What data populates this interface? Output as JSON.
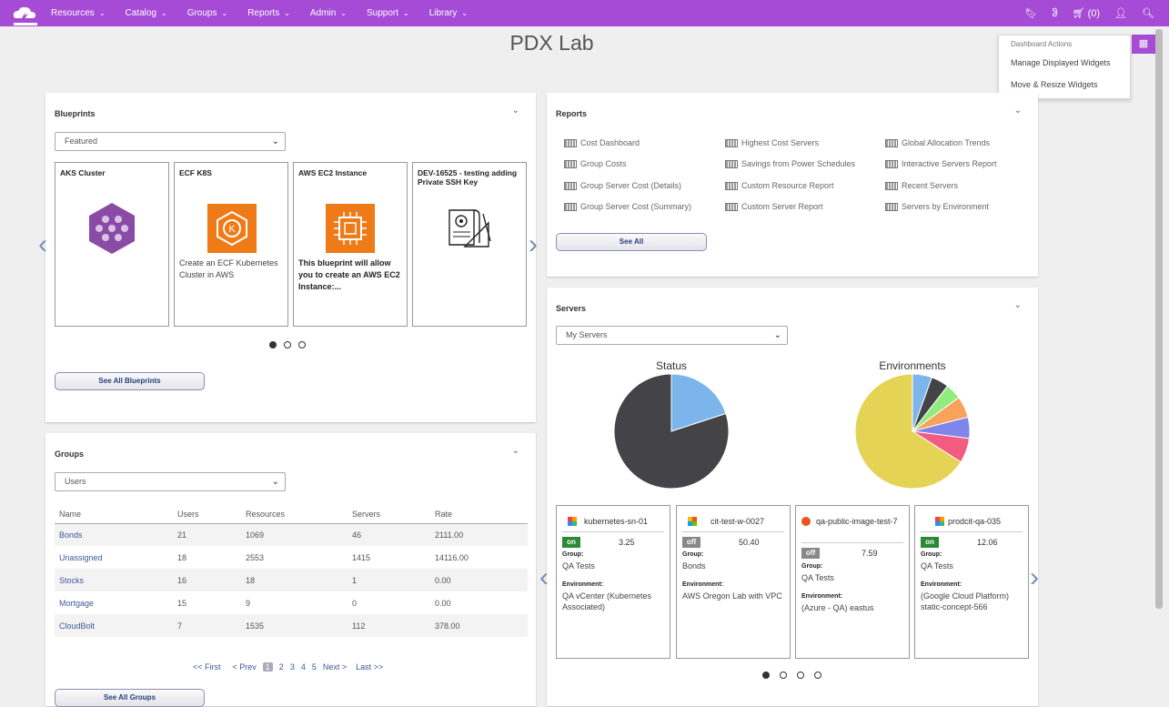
{
  "nav": {
    "items": [
      "Resources",
      "Catalog",
      "Groups",
      "Reports",
      "Admin",
      "Support",
      "Library"
    ],
    "cart_label": "(0)"
  },
  "page": {
    "title": "PDX Lab"
  },
  "dashboard_actions": {
    "heading": "Dashboard Actions",
    "items": [
      "Manage Displayed Widgets",
      "Move & Resize Widgets"
    ]
  },
  "blueprints": {
    "title": "Blueprints",
    "filter": "Featured",
    "cards": [
      {
        "name": "AKS Cluster",
        "desc": ""
      },
      {
        "name": "ECF K8S",
        "desc": "Create an ECF Kubernetes Cluster in AWS"
      },
      {
        "name": "AWS EC2 Instance",
        "desc": "This blueprint will allow you to create an AWS EC2 Instance:..."
      },
      {
        "name": "DEV-16525 - testing adding Private SSH Key",
        "desc": ""
      }
    ],
    "see_all": "See All Blueprints"
  },
  "reports": {
    "title": "Reports",
    "links": [
      [
        "Cost Dashboard",
        "Group Costs",
        "Group Server Cost (Details)",
        "Group Server Cost (Summary)"
      ],
      [
        "Highest Cost Servers",
        "Savings from Power Schedules",
        "Custom Resource Report",
        "Custom Server Report"
      ],
      [
        "Global Allocation Trends",
        "Interactive Servers Report",
        "Recent Servers",
        "Servers by Environment"
      ]
    ],
    "see_all": "See All"
  },
  "groups": {
    "title": "Groups",
    "filter": "Users",
    "columns": [
      "Name",
      "Users",
      "Resources",
      "Servers",
      "Rate"
    ],
    "rows": [
      [
        "Bonds",
        "21",
        "1069",
        "46",
        "2111.00"
      ],
      [
        "Unassigned",
        "18",
        "2553",
        "1415",
        "14116.00"
      ],
      [
        "Stocks",
        "16",
        "18",
        "1",
        "0.00"
      ],
      [
        "Mortgage",
        "15",
        "9",
        "0",
        "0.00"
      ],
      [
        "CloudBolt",
        "7",
        "1535",
        "112",
        "378.00"
      ]
    ],
    "pager": {
      "first": "<< First",
      "prev": "< Prev",
      "pages": [
        "1",
        "2",
        "3",
        "4",
        "5"
      ],
      "next": "Next >",
      "last": "Last >>"
    },
    "see_all": "See All Groups"
  },
  "servers": {
    "title": "Servers",
    "filter": "My Servers",
    "status_title": "Status",
    "env_title": "Environments",
    "cards": [
      {
        "name": "kubernetes-sn-01",
        "power": "on",
        "cost": "3.25",
        "group_label": "Group:",
        "group": "QA Tests",
        "env_label": "Environment:",
        "env": "QA vCenter (Kubernetes Associated)",
        "icon_color": "#3b7"
      },
      {
        "name": "cit-test-w-0027",
        "power": "off",
        "cost": "50.40",
        "group_label": "Group:",
        "group": "Bonds",
        "env_label": "Environment:",
        "env": "AWS Oregon Lab with VPC",
        "icon_color": "#f44"
      },
      {
        "name": "qa-public-image-test-7",
        "power": "off",
        "cost": "7.59",
        "group_label": "Group:",
        "group": "QA Tests",
        "env_label": "Environment:",
        "env": "(Azure - QA) eastus",
        "icon_color": "#e95420"
      },
      {
        "name": "prodcit-qa-035",
        "power": "on",
        "cost": "12.06",
        "group_label": "Group:",
        "group": "QA Tests",
        "env_label": "Environment:",
        "env": "(Google Cloud Platform) static-concept-566",
        "icon_color": "#3b7"
      }
    ]
  },
  "chart_data": [
    {
      "type": "pie",
      "title": "Status",
      "categories": [
        "",
        ""
      ],
      "values": [
        80,
        20
      ],
      "colors": [
        "#434348",
        "#7cb5ec"
      ]
    },
    {
      "type": "pie",
      "title": "Environments",
      "categories": [
        "",
        "",
        "",
        "",
        "",
        "",
        ""
      ],
      "values": [
        5.5,
        5,
        4.5,
        6,
        6,
        7,
        66
      ],
      "colors": [
        "#7cb5ec",
        "#434348",
        "#90ed7d",
        "#f7a35c",
        "#8085e9",
        "#f15c80",
        "#e4d354"
      ]
    }
  ]
}
